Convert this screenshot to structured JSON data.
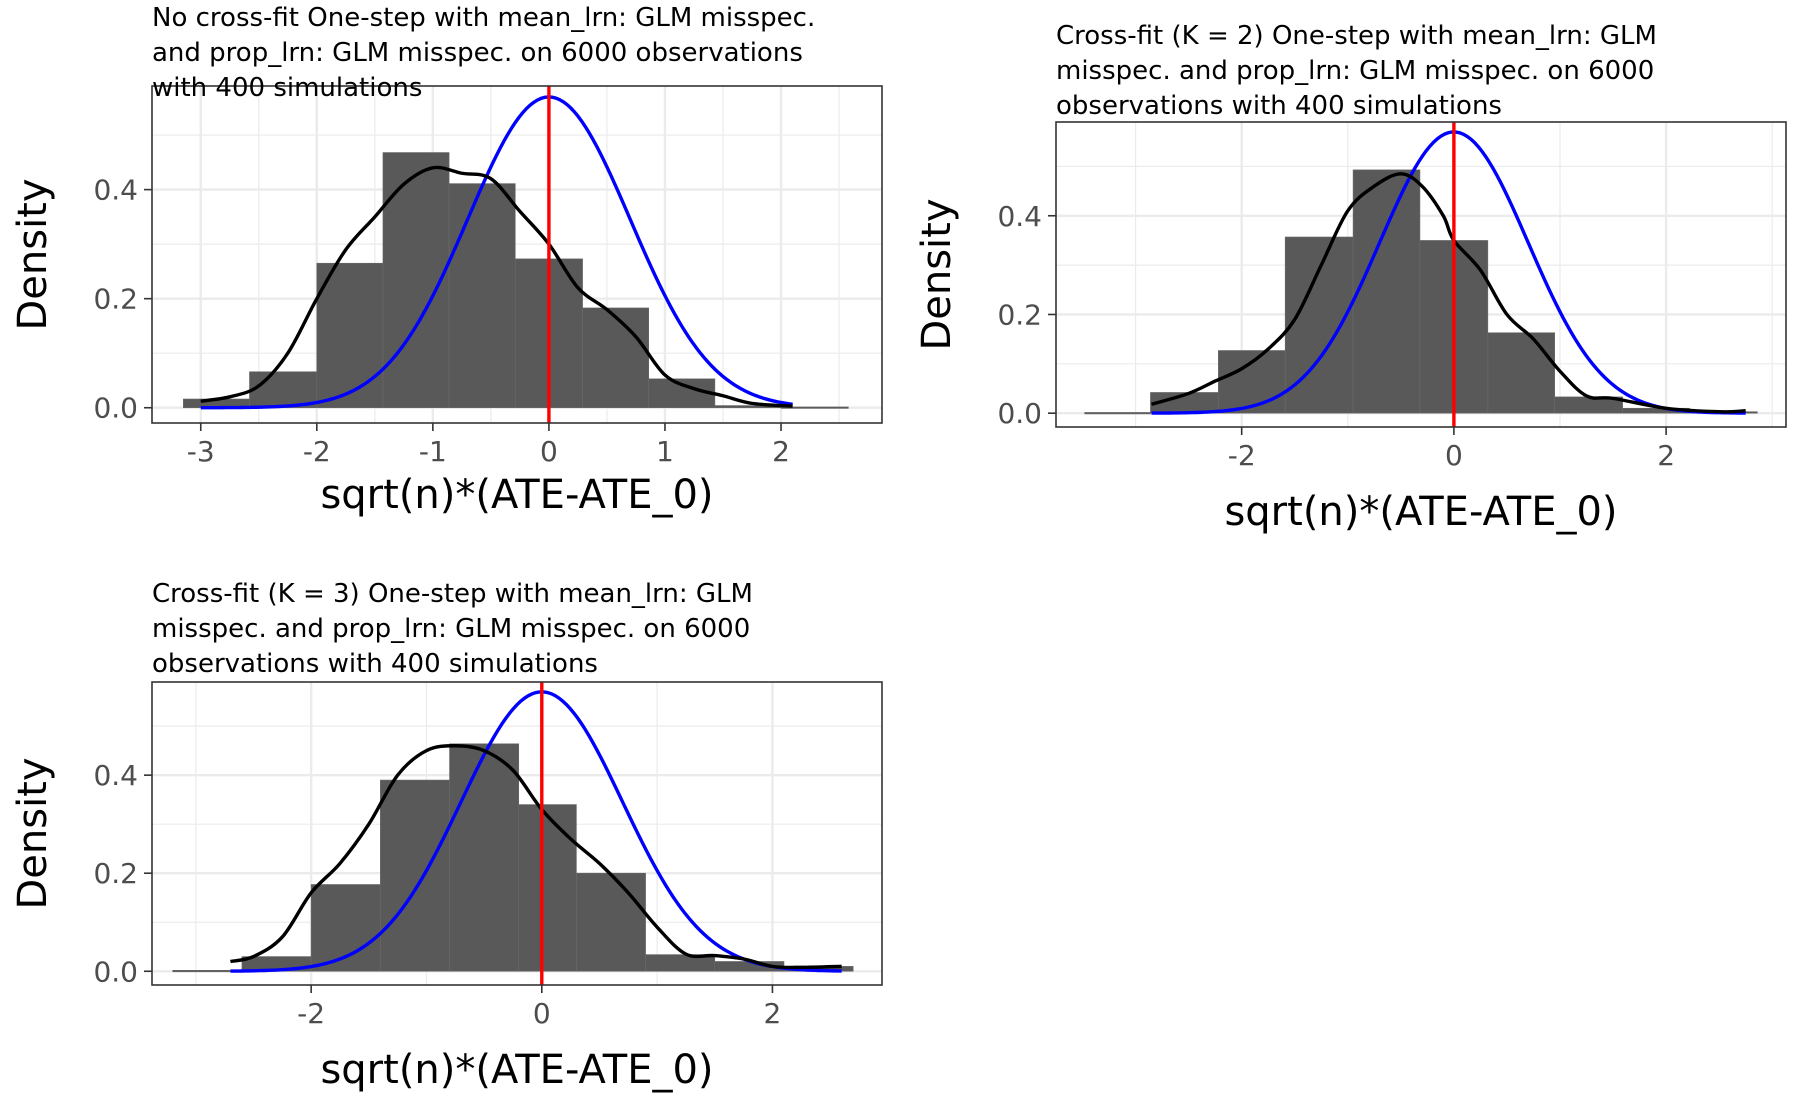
{
  "colors": {
    "bar": "#595959",
    "density": "#000000",
    "normal": "#0000ff",
    "vline": "#ff0000",
    "grid": "#ebebeb",
    "panel_border": "#333333"
  },
  "chart_data": [
    {
      "type": "bar",
      "title_lines": [
        "No cross-fit One-step with mean_lrn: GLM misspec.",
        "and prop_lrn: GLM misspec. on 6000 observations",
        "with 400 simulations"
      ],
      "xlabel": "sqrt(n)*(ATE-ATE_0)",
      "ylabel": "Density",
      "xlim": [
        -3.42,
        2.87
      ],
      "ylim": [
        -0.028,
        0.59
      ],
      "xticks": [
        -3,
        -2,
        -1,
        0,
        1,
        2
      ],
      "xtick_labels": [
        "-3",
        "-2",
        "-1",
        "0",
        "1",
        "2"
      ],
      "yticks": [
        0,
        0.2,
        0.4
      ],
      "ytick_labels": [
        "0.0",
        "0.2",
        "0.4"
      ],
      "grid": true,
      "vline_x": 0,
      "histogram": {
        "bin_edges": [
          -3.15,
          -2.58,
          -2.0,
          -1.43,
          -0.86,
          -0.29,
          0.29,
          0.86,
          1.43,
          2.0,
          2.58
        ],
        "values": [
          0.016,
          0.066,
          0.265,
          0.468,
          0.411,
          0.273,
          0.183,
          0.053,
          0.004,
          0.0
        ]
      },
      "density_curve": {
        "x": [
          -3.0,
          -2.75,
          -2.5,
          -2.25,
          -2.0,
          -1.75,
          -1.5,
          -1.25,
          -1.0,
          -0.75,
          -0.5,
          -0.25,
          0.0,
          0.25,
          0.5,
          0.75,
          1.0,
          1.25,
          1.5,
          1.75,
          2.1
        ],
        "y": [
          0.012,
          0.02,
          0.04,
          0.1,
          0.2,
          0.29,
          0.35,
          0.41,
          0.44,
          0.43,
          0.42,
          0.36,
          0.3,
          0.22,
          0.18,
          0.13,
          0.06,
          0.035,
          0.022,
          0.008,
          0.003
        ]
      },
      "normal_curve": {
        "mean": 0,
        "sd": 0.7,
        "range": [
          -3.0,
          2.1
        ]
      }
    },
    {
      "type": "bar",
      "title_lines": [
        "Cross-fit (K = 2) One-step with mean_lrn: GLM",
        "misspec. and prop_lrn: GLM misspec. on 6000",
        "observations with 400 simulations"
      ],
      "xlabel": "sqrt(n)*(ATE-ATE_0)",
      "ylabel": "Density",
      "xlim": [
        -3.75,
        3.13
      ],
      "ylim": [
        -0.028,
        0.59
      ],
      "xticks": [
        -2,
        0,
        2
      ],
      "xtick_labels": [
        "-2",
        "0",
        "2"
      ],
      "yticks": [
        0,
        0.2,
        0.4
      ],
      "ytick_labels": [
        "0.0",
        "0.2",
        "0.4"
      ],
      "grid": true,
      "vline_x": 0,
      "histogram": {
        "bin_edges": [
          -3.48,
          -2.86,
          -2.22,
          -1.59,
          -0.95,
          -0.32,
          0.32,
          0.95,
          1.59,
          2.22,
          2.86
        ],
        "values": [
          0.0,
          0.042,
          0.127,
          0.357,
          0.493,
          0.35,
          0.163,
          0.033,
          0.01,
          0.003
        ]
      },
      "density_curve": {
        "x": [
          -2.85,
          -2.5,
          -2.25,
          -2.0,
          -1.75,
          -1.5,
          -1.25,
          -1.0,
          -0.75,
          -0.5,
          -0.3,
          -0.1,
          0.0,
          0.25,
          0.5,
          0.75,
          1.0,
          1.25,
          1.5,
          2.0,
          2.5,
          2.75
        ],
        "y": [
          0.018,
          0.04,
          0.065,
          0.09,
          0.13,
          0.19,
          0.3,
          0.41,
          0.46,
          0.485,
          0.46,
          0.4,
          0.35,
          0.29,
          0.2,
          0.15,
          0.085,
          0.035,
          0.03,
          0.01,
          0.003,
          0.005
        ]
      },
      "normal_curve": {
        "mean": 0,
        "sd": 0.7,
        "range": [
          -2.85,
          2.75
        ]
      }
    },
    {
      "type": "bar",
      "title_lines": [
        "Cross-fit (K = 3) One-step with mean_lrn: GLM",
        "misspec. and prop_lrn: GLM misspec. on 6000",
        "observations with 400 simulations"
      ],
      "xlabel": "sqrt(n)*(ATE-ATE_0)",
      "ylabel": "Density",
      "xlim": [
        -3.38,
        2.95
      ],
      "ylim": [
        -0.028,
        0.59
      ],
      "xticks": [
        -2,
        0,
        2
      ],
      "xtick_labels": [
        "-2",
        "0",
        "2"
      ],
      "yticks": [
        0,
        0.2,
        0.4
      ],
      "ytick_labels": [
        "0.0",
        "0.2",
        "0.4"
      ],
      "grid": true,
      "vline_x": 0,
      "histogram": {
        "bin_edges": [
          -3.2,
          -2.6,
          -2.0,
          -1.4,
          -0.8,
          -0.2,
          0.3,
          0.9,
          1.5,
          2.1,
          2.7
        ],
        "values": [
          0.002,
          0.03,
          0.177,
          0.39,
          0.464,
          0.34,
          0.2,
          0.034,
          0.02,
          0.01
        ]
      },
      "density_curve": {
        "x": [
          -2.7,
          -2.5,
          -2.25,
          -2.0,
          -1.75,
          -1.5,
          -1.25,
          -1.0,
          -0.75,
          -0.5,
          -0.25,
          0.0,
          0.25,
          0.5,
          0.75,
          1.0,
          1.25,
          1.5,
          1.75,
          2.0,
          2.25,
          2.6
        ],
        "y": [
          0.02,
          0.03,
          0.07,
          0.16,
          0.22,
          0.3,
          0.4,
          0.45,
          0.46,
          0.45,
          0.41,
          0.33,
          0.27,
          0.22,
          0.16,
          0.09,
          0.035,
          0.032,
          0.025,
          0.01,
          0.008,
          0.01
        ]
      },
      "normal_curve": {
        "mean": 0,
        "sd": 0.7,
        "range": [
          -2.7,
          2.6
        ]
      }
    }
  ]
}
